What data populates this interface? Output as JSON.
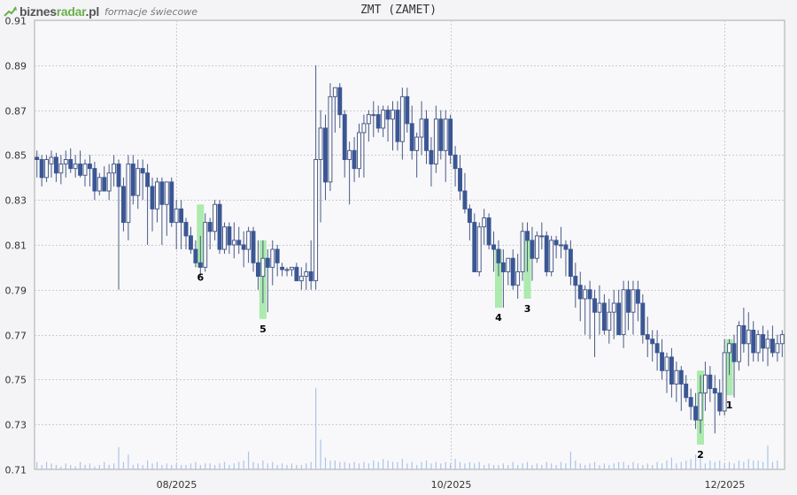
{
  "header": {
    "brand_part1": "biznes",
    "brand_part2": "radar",
    "brand_part3": ".pl",
    "subtitle": "formacje świecowe",
    "logo_icon": "trend-arrow-icon"
  },
  "colors": {
    "bull_outline": "#4a5a86",
    "bear_fill": "#3a5694",
    "wick": "#4a5a86",
    "volume": "#aac4e8",
    "pattern_highlight": "#9fe89f",
    "grid": "#cccccc",
    "plot_bg": "#f8f8fa"
  },
  "chart_data": {
    "type": "candlestick",
    "title": "ZMT (ZAMET)",
    "ylim": [
      0.71,
      0.91
    ],
    "y_ticks": [
      0.91,
      0.89,
      0.87,
      0.85,
      0.83,
      0.81,
      0.79,
      0.77,
      0.75,
      0.73,
      0.71
    ],
    "x_tick_labels": [
      "08/2025",
      "10/2025",
      "12/2025"
    ],
    "grid": true,
    "candles": [
      [
        0.849,
        0.852,
        0.84,
        0.848
      ],
      [
        0.848,
        0.85,
        0.836,
        0.84
      ],
      [
        0.84,
        0.85,
        0.838,
        0.848
      ],
      [
        0.846,
        0.852,
        0.84,
        0.849
      ],
      [
        0.849,
        0.851,
        0.838,
        0.842
      ],
      [
        0.842,
        0.85,
        0.837,
        0.846
      ],
      [
        0.846,
        0.852,
        0.84,
        0.848
      ],
      [
        0.848,
        0.853,
        0.842,
        0.844
      ],
      [
        0.844,
        0.85,
        0.84,
        0.846
      ],
      [
        0.846,
        0.852,
        0.84,
        0.841
      ],
      [
        0.841,
        0.848,
        0.836,
        0.846
      ],
      [
        0.846,
        0.85,
        0.836,
        0.844
      ],
      [
        0.844,
        0.847,
        0.83,
        0.834
      ],
      [
        0.834,
        0.842,
        0.832,
        0.84
      ],
      [
        0.84,
        0.845,
        0.834,
        0.834
      ],
      [
        0.834,
        0.846,
        0.83,
        0.842
      ],
      [
        0.842,
        0.85,
        0.836,
        0.846
      ],
      [
        0.846,
        0.848,
        0.79,
        0.836
      ],
      [
        0.836,
        0.84,
        0.816,
        0.82
      ],
      [
        0.82,
        0.85,
        0.812,
        0.846
      ],
      [
        0.846,
        0.85,
        0.828,
        0.832
      ],
      [
        0.832,
        0.848,
        0.826,
        0.844
      ],
      [
        0.844,
        0.848,
        0.83,
        0.842
      ],
      [
        0.842,
        0.846,
        0.81,
        0.836
      ],
      [
        0.836,
        0.84,
        0.816,
        0.826
      ],
      [
        0.826,
        0.84,
        0.82,
        0.838
      ],
      [
        0.838,
        0.84,
        0.81,
        0.828
      ],
      [
        0.828,
        0.838,
        0.814,
        0.838
      ],
      [
        0.838,
        0.84,
        0.818,
        0.82
      ],
      [
        0.82,
        0.83,
        0.808,
        0.826
      ],
      [
        0.826,
        0.83,
        0.808,
        0.82
      ],
      [
        0.82,
        0.822,
        0.808,
        0.814
      ],
      [
        0.814,
        0.818,
        0.806,
        0.808
      ],
      [
        0.808,
        0.812,
        0.8,
        0.802
      ],
      [
        0.802,
        0.814,
        0.796,
        0.8
      ],
      [
        0.8,
        0.824,
        0.798,
        0.82
      ],
      [
        0.82,
        0.822,
        0.808,
        0.816
      ],
      [
        0.816,
        0.83,
        0.812,
        0.828
      ],
      [
        0.828,
        0.83,
        0.806,
        0.808
      ],
      [
        0.808,
        0.82,
        0.806,
        0.818
      ],
      [
        0.818,
        0.82,
        0.806,
        0.81
      ],
      [
        0.81,
        0.82,
        0.804,
        0.812
      ],
      [
        0.812,
        0.818,
        0.806,
        0.81
      ],
      [
        0.81,
        0.816,
        0.8,
        0.808
      ],
      [
        0.808,
        0.818,
        0.802,
        0.816
      ],
      [
        0.816,
        0.818,
        0.798,
        0.802
      ],
      [
        0.802,
        0.812,
        0.79,
        0.796
      ],
      [
        0.796,
        0.812,
        0.784,
        0.804
      ],
      [
        0.804,
        0.808,
        0.78,
        0.8
      ],
      [
        0.8,
        0.812,
        0.792,
        0.808
      ],
      [
        0.808,
        0.81,
        0.796,
        0.802
      ],
      [
        0.8,
        0.802,
        0.796,
        0.799
      ],
      [
        0.799,
        0.8,
        0.796,
        0.799
      ],
      [
        0.799,
        0.8,
        0.796,
        0.8
      ],
      [
        0.8,
        0.802,
        0.794,
        0.794
      ],
      [
        0.794,
        0.8,
        0.79,
        0.796
      ],
      [
        0.796,
        0.802,
        0.79,
        0.798
      ],
      [
        0.798,
        0.812,
        0.79,
        0.794
      ],
      [
        0.794,
        0.89,
        0.79,
        0.848
      ],
      [
        0.848,
        0.87,
        0.82,
        0.862
      ],
      [
        0.862,
        0.868,
        0.83,
        0.838
      ],
      [
        0.838,
        0.882,
        0.834,
        0.876
      ],
      [
        0.876,
        0.88,
        0.86,
        0.88
      ],
      [
        0.88,
        0.882,
        0.862,
        0.868
      ],
      [
        0.868,
        0.87,
        0.84,
        0.848
      ],
      [
        0.848,
        0.856,
        0.828,
        0.852
      ],
      [
        0.852,
        0.858,
        0.838,
        0.844
      ],
      [
        0.844,
        0.864,
        0.84,
        0.86
      ],
      [
        0.86,
        0.868,
        0.84,
        0.864
      ],
      [
        0.864,
        0.87,
        0.856,
        0.868
      ],
      [
        0.868,
        0.874,
        0.858,
        0.868
      ],
      [
        0.868,
        0.872,
        0.86,
        0.862
      ],
      [
        0.862,
        0.872,
        0.858,
        0.87
      ],
      [
        0.87,
        0.872,
        0.856,
        0.866
      ],
      [
        0.866,
        0.874,
        0.852,
        0.87
      ],
      [
        0.87,
        0.874,
        0.852,
        0.856
      ],
      [
        0.856,
        0.88,
        0.848,
        0.876
      ],
      [
        0.876,
        0.88,
        0.86,
        0.864
      ],
      [
        0.864,
        0.872,
        0.848,
        0.852
      ],
      [
        0.852,
        0.86,
        0.84,
        0.858
      ],
      [
        0.858,
        0.874,
        0.85,
        0.866
      ],
      [
        0.866,
        0.87,
        0.846,
        0.852
      ],
      [
        0.852,
        0.858,
        0.836,
        0.846
      ],
      [
        0.846,
        0.872,
        0.842,
        0.866
      ],
      [
        0.866,
        0.87,
        0.848,
        0.852
      ],
      [
        0.852,
        0.87,
        0.838,
        0.866
      ],
      [
        0.866,
        0.868,
        0.846,
        0.85
      ],
      [
        0.85,
        0.854,
        0.836,
        0.844
      ],
      [
        0.844,
        0.85,
        0.83,
        0.834
      ],
      [
        0.834,
        0.842,
        0.824,
        0.826
      ],
      [
        0.826,
        0.828,
        0.812,
        0.82
      ],
      [
        0.82,
        0.824,
        0.798,
        0.798
      ],
      [
        0.798,
        0.82,
        0.796,
        0.818
      ],
      [
        0.818,
        0.826,
        0.81,
        0.822
      ],
      [
        0.822,
        0.824,
        0.808,
        0.81
      ],
      [
        0.81,
        0.816,
        0.798,
        0.808
      ],
      [
        0.808,
        0.812,
        0.796,
        0.802
      ],
      [
        0.802,
        0.808,
        0.782,
        0.798
      ],
      [
        0.798,
        0.804,
        0.792,
        0.804
      ],
      [
        0.804,
        0.808,
        0.79,
        0.792
      ],
      [
        0.792,
        0.806,
        0.786,
        0.798
      ],
      [
        0.798,
        0.82,
        0.794,
        0.816
      ],
      [
        0.816,
        0.82,
        0.798,
        0.812
      ],
      [
        0.812,
        0.818,
        0.794,
        0.804
      ],
      [
        0.804,
        0.816,
        0.802,
        0.814
      ],
      [
        0.814,
        0.82,
        0.808,
        0.814
      ],
      [
        0.814,
        0.816,
        0.796,
        0.798
      ],
      [
        0.798,
        0.814,
        0.796,
        0.812
      ],
      [
        0.812,
        0.814,
        0.804,
        0.81
      ],
      [
        0.81,
        0.818,
        0.804,
        0.81
      ],
      [
        0.81,
        0.812,
        0.796,
        0.808
      ],
      [
        0.808,
        0.812,
        0.792,
        0.796
      ],
      [
        0.796,
        0.802,
        0.782,
        0.792
      ],
      [
        0.792,
        0.798,
        0.776,
        0.786
      ],
      [
        0.786,
        0.792,
        0.77,
        0.79
      ],
      [
        0.79,
        0.794,
        0.768,
        0.786
      ],
      [
        0.786,
        0.79,
        0.76,
        0.78
      ],
      [
        0.78,
        0.792,
        0.77,
        0.784
      ],
      [
        0.784,
        0.788,
        0.77,
        0.772
      ],
      [
        0.772,
        0.786,
        0.766,
        0.78
      ],
      [
        0.78,
        0.79,
        0.768,
        0.784
      ],
      [
        0.784,
        0.79,
        0.77,
        0.77
      ],
      [
        0.77,
        0.794,
        0.764,
        0.79
      ],
      [
        0.79,
        0.794,
        0.772,
        0.78
      ],
      [
        0.78,
        0.794,
        0.77,
        0.79
      ],
      [
        0.79,
        0.794,
        0.776,
        0.784
      ],
      [
        0.784,
        0.788,
        0.766,
        0.77
      ],
      [
        0.77,
        0.778,
        0.76,
        0.768
      ],
      [
        0.768,
        0.772,
        0.758,
        0.766
      ],
      [
        0.766,
        0.772,
        0.754,
        0.762
      ],
      [
        0.762,
        0.768,
        0.75,
        0.754
      ],
      [
        0.754,
        0.762,
        0.744,
        0.76
      ],
      [
        0.76,
        0.764,
        0.742,
        0.748
      ],
      [
        0.748,
        0.758,
        0.74,
        0.754
      ],
      [
        0.754,
        0.756,
        0.736,
        0.748
      ],
      [
        0.748,
        0.752,
        0.74,
        0.742
      ],
      [
        0.742,
        0.746,
        0.732,
        0.738
      ],
      [
        0.738,
        0.744,
        0.728,
        0.732
      ],
      [
        0.732,
        0.752,
        0.726,
        0.744
      ],
      [
        0.744,
        0.758,
        0.736,
        0.752
      ],
      [
        0.752,
        0.756,
        0.74,
        0.746
      ],
      [
        0.746,
        0.752,
        0.726,
        0.744
      ],
      [
        0.744,
        0.75,
        0.734,
        0.736
      ],
      [
        0.736,
        0.768,
        0.734,
        0.762
      ],
      [
        0.762,
        0.768,
        0.752,
        0.766
      ],
      [
        0.766,
        0.77,
        0.742,
        0.758
      ],
      [
        0.758,
        0.776,
        0.754,
        0.774
      ],
      [
        0.774,
        0.782,
        0.762,
        0.766
      ],
      [
        0.766,
        0.78,
        0.756,
        0.772
      ],
      [
        0.772,
        0.776,
        0.758,
        0.762
      ],
      [
        0.762,
        0.772,
        0.758,
        0.77
      ],
      [
        0.77,
        0.774,
        0.758,
        0.764
      ],
      [
        0.764,
        0.772,
        0.756,
        0.768
      ],
      [
        0.768,
        0.774,
        0.76,
        0.762
      ],
      [
        0.762,
        0.77,
        0.758,
        0.766
      ],
      [
        0.766,
        0.772,
        0.76,
        0.77
      ]
    ],
    "volume_relative": [
      0.05,
      0.03,
      0.05,
      0.04,
      0.03,
      0.02,
      0.04,
      0.03,
      0.02,
      0.05,
      0.03,
      0.04,
      0.02,
      0.03,
      0.05,
      0.03,
      0.04,
      0.15,
      0.05,
      0.1,
      0.03,
      0.04,
      0.03,
      0.06,
      0.04,
      0.05,
      0.03,
      0.04,
      0.03,
      0.04,
      0.03,
      0.03,
      0.04,
      0.05,
      0.03,
      0.04,
      0.04,
      0.03,
      0.04,
      0.05,
      0.03,
      0.04,
      0.05,
      0.06,
      0.12,
      0.05,
      0.04,
      0.06,
      0.04,
      0.05,
      0.03,
      0.04,
      0.03,
      0.04,
      0.03,
      0.03,
      0.04,
      0.05,
      0.55,
      0.2,
      0.08,
      0.06,
      0.06,
      0.05,
      0.05,
      0.04,
      0.05,
      0.04,
      0.05,
      0.04,
      0.06,
      0.05,
      0.07,
      0.06,
      0.05,
      0.05,
      0.07,
      0.04,
      0.05,
      0.03,
      0.05,
      0.06,
      0.04,
      0.05,
      0.04,
      0.05,
      0.04,
      0.07,
      0.05,
      0.04,
      0.05,
      0.04,
      0.05,
      0.03,
      0.04,
      0.03,
      0.03,
      0.04,
      0.03,
      0.05,
      0.03,
      0.04,
      0.05,
      0.03,
      0.04,
      0.03,
      0.05,
      0.04,
      0.03,
      0.05,
      0.04,
      0.12,
      0.06,
      0.04,
      0.03,
      0.04,
      0.05,
      0.03,
      0.04,
      0.03,
      0.04,
      0.05,
      0.05,
      0.03,
      0.05,
      0.04,
      0.03,
      0.04,
      0.03,
      0.05,
      0.04,
      0.06,
      0.08,
      0.04,
      0.05,
      0.06,
      0.07,
      0.1,
      0.09,
      0.04,
      0.06,
      0.05,
      0.06,
      0.04,
      0.05,
      0.04,
      0.06,
      0.05,
      0.07,
      0.06,
      0.06,
      0.05,
      0.16,
      0.05,
      0.06
    ],
    "patterns": [
      {
        "label": "6",
        "candle_index": 34,
        "low": 0.8,
        "high": 0.828
      },
      {
        "label": "5",
        "candle_index": 47,
        "low": 0.777,
        "high": 0.812
      },
      {
        "label": "4",
        "candle_index": 96,
        "low": 0.782,
        "high": 0.808
      },
      {
        "label": "3",
        "candle_index": 102,
        "low": 0.786,
        "high": 0.812
      },
      {
        "label": "2",
        "candle_index": 138,
        "low": 0.721,
        "high": 0.754
      },
      {
        "label": "1",
        "candle_index": 144,
        "low": 0.743,
        "high": 0.768
      }
    ]
  }
}
